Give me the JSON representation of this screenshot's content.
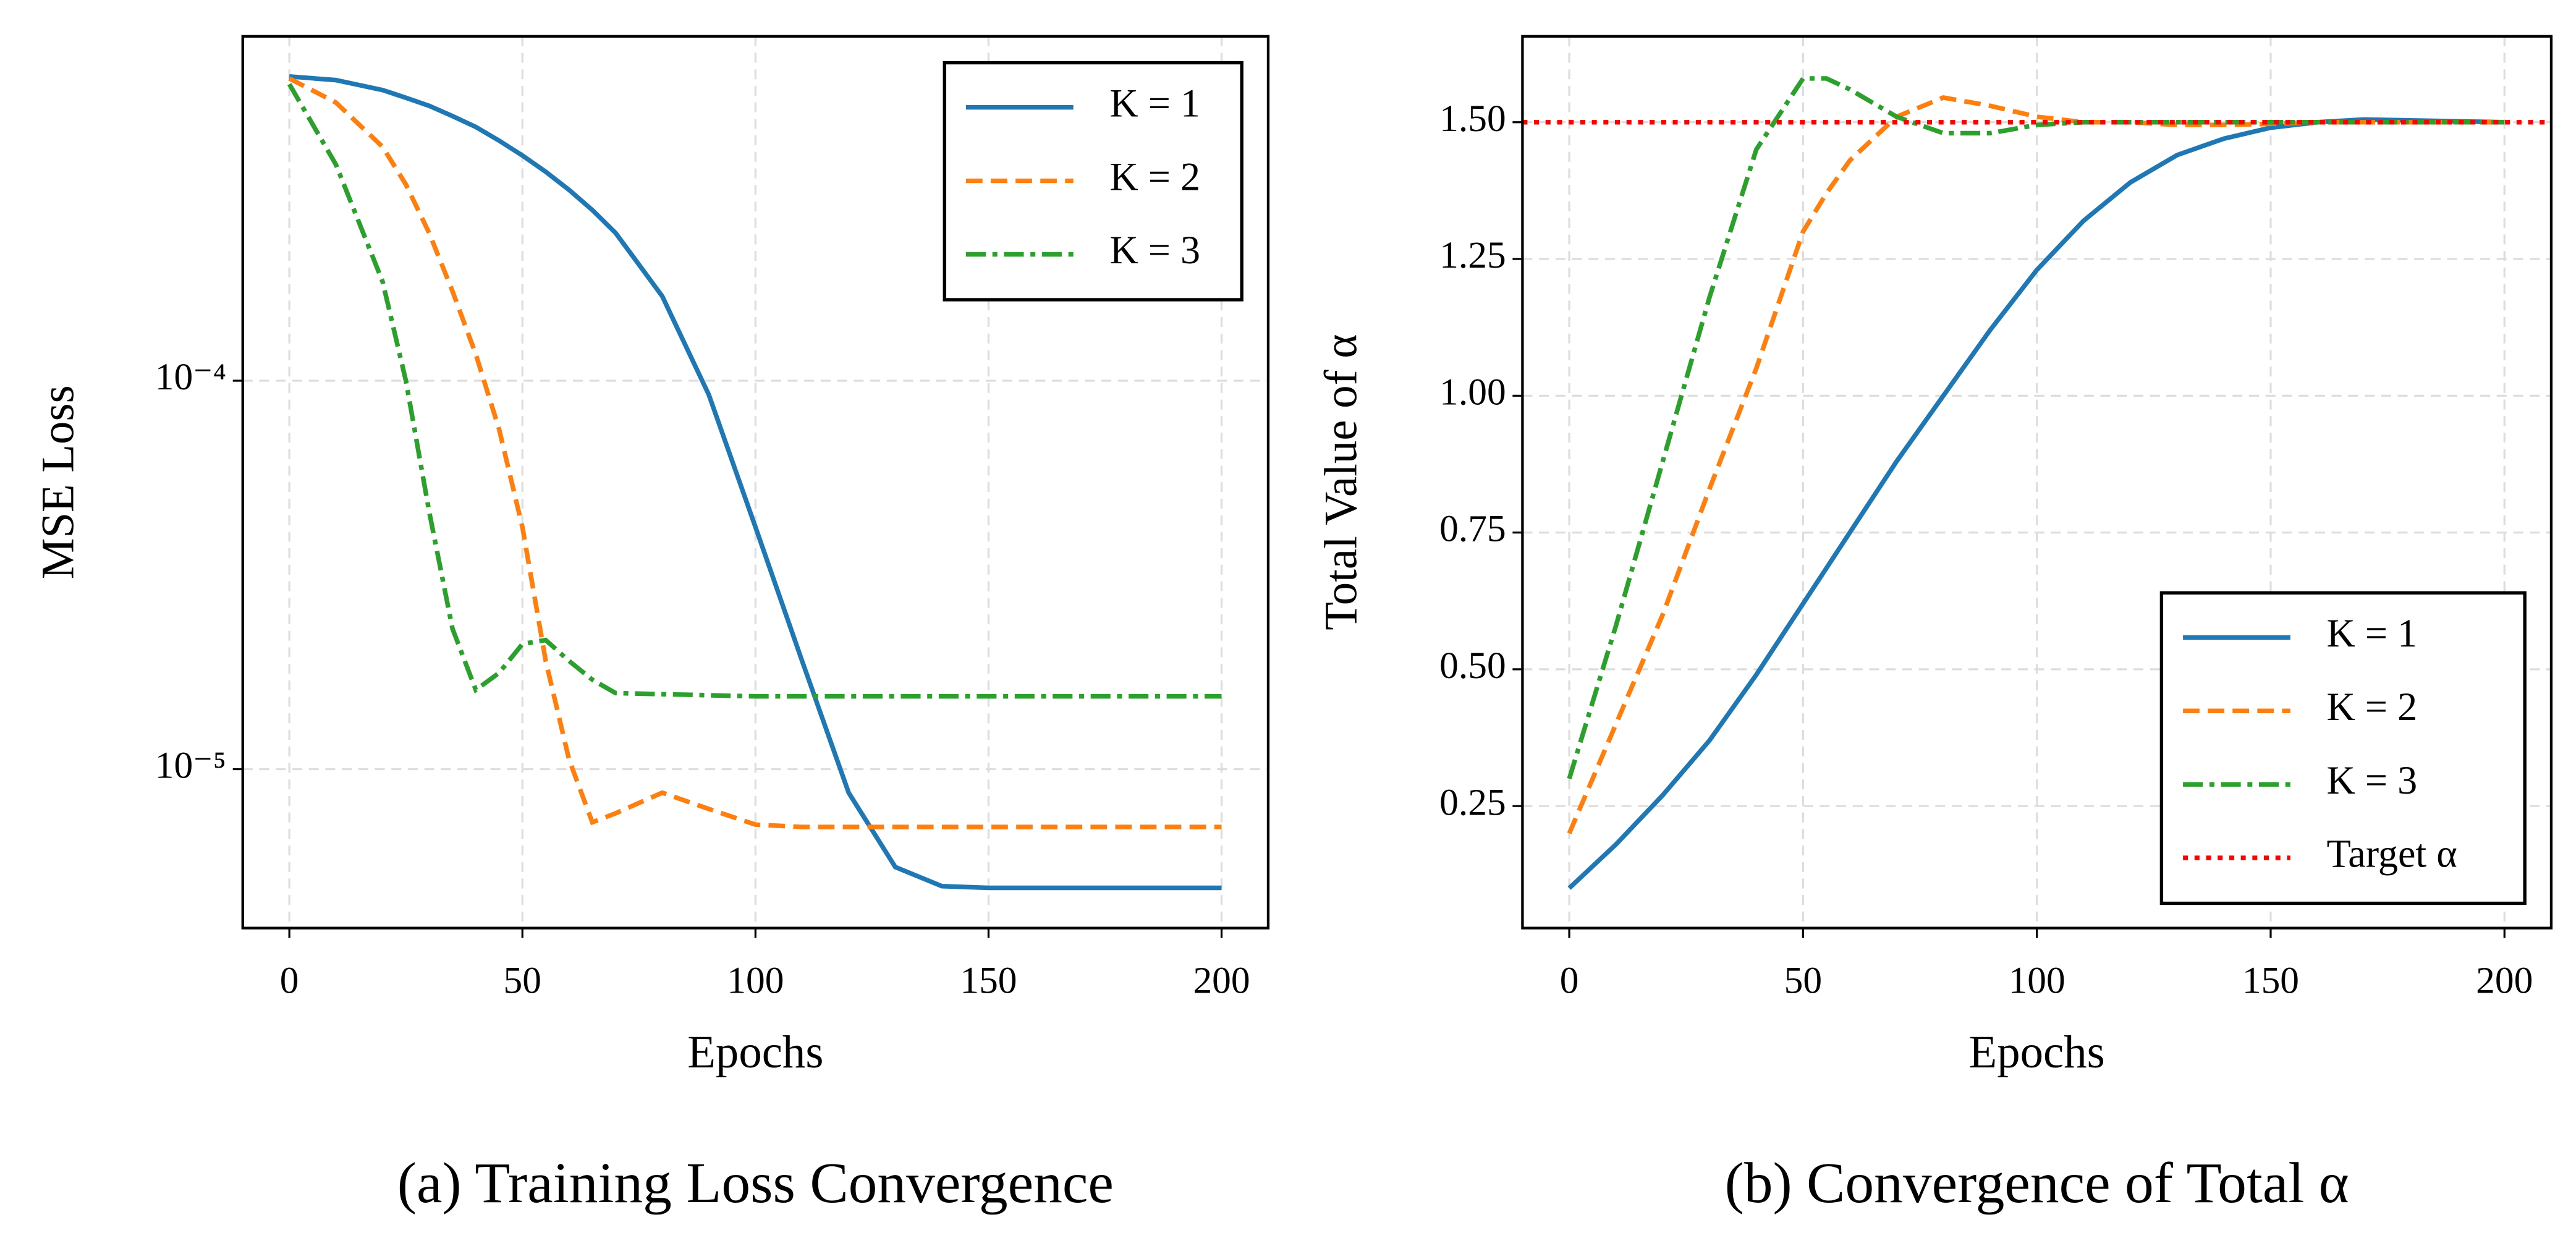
{
  "chart_data": [
    {
      "type": "line",
      "title": "(a) Training Loss Convergence",
      "xlabel": "Epochs",
      "ylabel": "MSE Loss",
      "x": [
        0,
        10,
        20,
        25,
        30,
        35,
        40,
        45,
        50,
        55,
        60,
        65,
        70,
        80,
        90,
        100,
        110,
        120,
        130,
        140,
        150,
        175,
        200
      ],
      "series": [
        {
          "name": "K = 1",
          "color": "#1f77b4",
          "style": "solid",
          "values": [
            0.000607,
            0.000594,
            0.00056,
            0.000535,
            0.00051,
            0.00048,
            0.00045,
            0.000415,
            0.00038,
            0.000345,
            0.00031,
            0.000275,
            0.00024,
            0.000165,
            9.2e-05,
            4.2e-05,
            1.9e-05,
            8.7e-06,
            5.6e-06,
            5e-06,
            4.95e-06,
            4.95e-06,
            4.95e-06
          ]
        },
        {
          "name": "K = 2",
          "color": "#ff7f0e",
          "style": "dashed",
          "values": [
            0.0006,
            0.00052,
            0.0004,
            0.00032,
            0.00024,
            0.00017,
            0.000117,
            7.5e-05,
            4.2e-05,
            1.9e-05,
            1.06e-05,
            7.3e-06,
            7.7e-06,
            8.7e-06,
            7.9e-06,
            7.2e-06,
            7.1e-06,
            7.1e-06,
            7.1e-06,
            7.1e-06,
            7.1e-06,
            7.1e-06,
            7.1e-06
          ]
        },
        {
          "name": "K = 3",
          "color": "#2ca02c",
          "style": "dashdot",
          "values": [
            0.00058,
            0.00036,
            0.00018,
            0.0001,
            4.6e-05,
            2.3e-05,
            1.6e-05,
            1.77e-05,
            2.1e-05,
            2.15e-05,
            1.9e-05,
            1.7e-05,
            1.57e-05,
            1.56e-05,
            1.55e-05,
            1.54e-05,
            1.54e-05,
            1.54e-05,
            1.54e-05,
            1.54e-05,
            1.54e-05,
            1.54e-05,
            1.54e-05
          ]
        }
      ],
      "xlim": [
        -10,
        210
      ],
      "xticks": [
        0,
        50,
        100,
        150,
        200
      ],
      "ylim": [
        3.9e-06,
        0.00077
      ],
      "log_y": true,
      "yticks": [
        {
          "value": 0.0001,
          "label": "10⁻⁴"
        },
        {
          "value": 1e-05,
          "label": "10⁻⁵"
        }
      ],
      "grid": true,
      "legend": "upper right"
    },
    {
      "type": "line",
      "title": "(b) Convergence of Total α",
      "xlabel": "Epochs",
      "ylabel": "Total Value of α",
      "x": [
        0,
        10,
        20,
        30,
        40,
        50,
        55,
        60,
        70,
        80,
        90,
        100,
        110,
        120,
        130,
        140,
        150,
        160,
        170,
        200
      ],
      "series": [
        {
          "name": "K = 1",
          "color": "#1f77b4",
          "style": "solid",
          "values": [
            0.1,
            0.18,
            0.27,
            0.37,
            0.49,
            0.62,
            0.685,
            0.75,
            0.88,
            1.0,
            1.12,
            1.23,
            1.32,
            1.39,
            1.44,
            1.47,
            1.49,
            1.5,
            1.505,
            1.5
          ]
        },
        {
          "name": "K = 2",
          "color": "#ff7f0e",
          "style": "dashed",
          "values": [
            0.2,
            0.4,
            0.6,
            0.83,
            1.05,
            1.3,
            1.37,
            1.43,
            1.51,
            1.545,
            1.53,
            1.51,
            1.5,
            1.5,
            1.495,
            1.495,
            1.497,
            1.5,
            1.5,
            1.5
          ]
        },
        {
          "name": "K = 3",
          "color": "#2ca02c",
          "style": "dashdot",
          "values": [
            0.3,
            0.58,
            0.88,
            1.18,
            1.45,
            1.58,
            1.58,
            1.56,
            1.51,
            1.48,
            1.48,
            1.495,
            1.5,
            1.5,
            1.5,
            1.5,
            1.5,
            1.5,
            1.5,
            1.5
          ]
        }
      ],
      "target": {
        "name": "Target α",
        "value": 1.5,
        "color": "#ff0000",
        "style": "dotted"
      },
      "xlim": [
        -10,
        210
      ],
      "xticks": [
        0,
        50,
        100,
        150,
        200
      ],
      "ylim": [
        0.027,
        1.657
      ],
      "yticks": [
        0.25,
        {
          "value": 0.5,
          "label": "0.50"
        },
        0.75,
        {
          "value": 1.0,
          "label": "1.00"
        },
        1.25,
        {
          "value": 1.5,
          "label": "1.50"
        }
      ],
      "grid": true,
      "legend": "lower right"
    }
  ]
}
